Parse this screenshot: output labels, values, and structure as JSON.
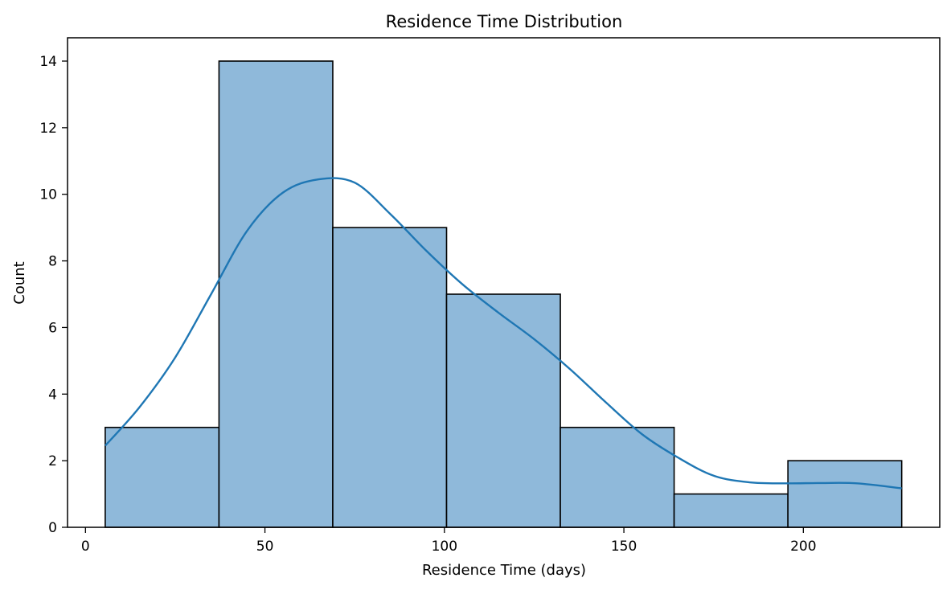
{
  "chart_data": {
    "type": "bar",
    "title": "Residence Time Distribution",
    "xlabel": "Residence Time (days)",
    "ylabel": "Count",
    "xlim": [
      -5,
      238
    ],
    "ylim": [
      0,
      14.7
    ],
    "xticks": [
      0,
      50,
      100,
      150,
      200
    ],
    "yticks": [
      0,
      2,
      4,
      6,
      8,
      10,
      12,
      14
    ],
    "bins": [
      {
        "x0": 5.5,
        "x1": 37.2,
        "count": 3
      },
      {
        "x0": 37.2,
        "x1": 68.9,
        "count": 14
      },
      {
        "x0": 68.9,
        "x1": 100.6,
        "count": 9
      },
      {
        "x0": 100.6,
        "x1": 132.3,
        "count": 7
      },
      {
        "x0": 132.3,
        "x1": 164.0,
        "count": 3
      },
      {
        "x0": 164.0,
        "x1": 195.7,
        "count": 1
      },
      {
        "x0": 195.7,
        "x1": 227.4,
        "count": 2
      }
    ],
    "kde": {
      "x": [
        5.5,
        15,
        25,
        35,
        45,
        55,
        65,
        75,
        85,
        95,
        105,
        115,
        125,
        135,
        145,
        155,
        165,
        175,
        185,
        195,
        205,
        215,
        227.4
      ],
      "y": [
        2.45,
        3.6,
        5.1,
        7.0,
        8.9,
        10.05,
        10.45,
        10.35,
        9.4,
        8.3,
        7.3,
        6.45,
        5.65,
        4.75,
        3.75,
        2.8,
        2.1,
        1.55,
        1.35,
        1.32,
        1.33,
        1.32,
        1.17
      ]
    },
    "colors": {
      "bar_fill": "#8fb9da",
      "bar_edge": "#000000",
      "kde_line": "#1f77b4"
    },
    "grid": false
  }
}
